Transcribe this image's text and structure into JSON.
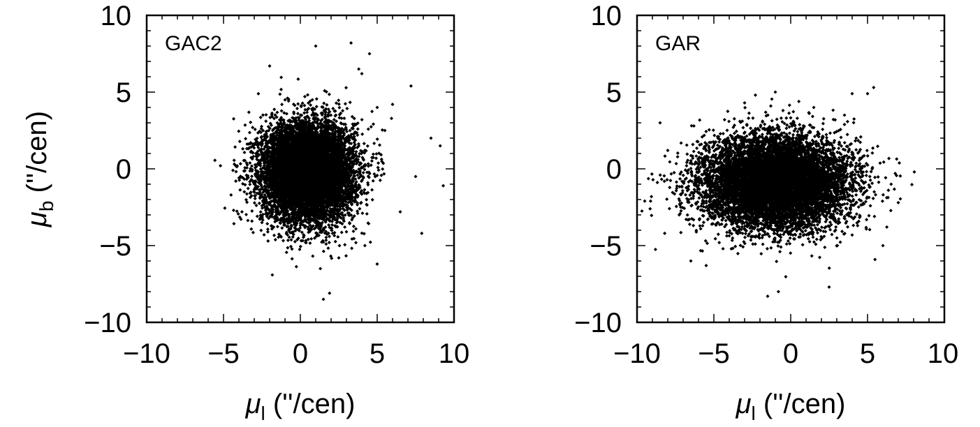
{
  "chart_data": [
    {
      "type": "scatter",
      "panel_label": "GAC2",
      "xlabel_symbol": "μ",
      "xlabel_sub": "l",
      "xlabel_unit": " (''/cen)",
      "ylabel_symbol": "μ",
      "ylabel_sub": "b",
      "ylabel_unit": " (''/cen)",
      "xlim": [
        -10,
        10
      ],
      "ylim": [
        -10,
        10
      ],
      "xticks": [
        "−10",
        "−5",
        "0",
        "5",
        "10"
      ],
      "yticks": [
        "10",
        "5",
        "0",
        "−5",
        "−10"
      ],
      "marker_color": "#000000",
      "cluster": {
        "center_x": 0.5,
        "center_y": -0.2,
        "sigma_x": 1.5,
        "sigma_y": 1.6,
        "points": 9000
      },
      "outliers": [
        [
          -5.2,
          0.2
        ],
        [
          -4.2,
          -0.8
        ],
        [
          -3.8,
          -2.8
        ],
        [
          -2.0,
          6.7
        ],
        [
          1.0,
          8.0
        ],
        [
          3.3,
          8.2
        ],
        [
          4.5,
          7.5
        ],
        [
          3.8,
          6.5
        ],
        [
          4.0,
          6.2
        ],
        [
          7.2,
          5.4
        ],
        [
          5.0,
          4.0
        ],
        [
          6.0,
          4.2
        ],
        [
          8.5,
          2.0
        ],
        [
          9.1,
          1.5
        ],
        [
          9.3,
          -1.1
        ],
        [
          7.9,
          -4.2
        ],
        [
          5.0,
          -6.2
        ],
        [
          1.3,
          -6.5
        ],
        [
          1.9,
          -8.1
        ],
        [
          1.5,
          -8.5
        ],
        [
          2.5,
          -5.8
        ],
        [
          -2.1,
          -4.7
        ],
        [
          -1.8,
          2.5
        ],
        [
          6.5,
          -2.8
        ],
        [
          7.5,
          -0.5
        ],
        [
          5.5,
          2.5
        ],
        [
          -2.5,
          -3.5
        ],
        [
          4.2,
          -5.0
        ]
      ]
    },
    {
      "type": "scatter",
      "panel_label": "GAR",
      "xlabel_symbol": "μ",
      "xlabel_sub": "l",
      "xlabel_unit": " (''/cen)",
      "xlim": [
        -10,
        10
      ],
      "ylim": [
        -10,
        10
      ],
      "xticks": [
        "−10",
        "−5",
        "0",
        "5",
        "10"
      ],
      "yticks": [
        "10",
        "5",
        "0",
        "−5",
        "−10"
      ],
      "marker_color": "#000000",
      "cluster": {
        "center_x": -1.0,
        "center_y": -0.9,
        "sigma_x": 2.4,
        "sigma_y": 1.5,
        "points": 9000
      },
      "outliers": [
        [
          -9.5,
          -2.1
        ],
        [
          -8.5,
          3.0
        ],
        [
          -8.0,
          1.2
        ],
        [
          -1.0,
          5.0
        ],
        [
          5.0,
          4.9
        ],
        [
          5.4,
          5.3
        ],
        [
          4.0,
          4.9
        ],
        [
          6.8,
          -0.3
        ],
        [
          7.0,
          -2.2
        ],
        [
          -1.5,
          -8.3
        ],
        [
          -0.8,
          -8.0
        ],
        [
          2.5,
          -7.7
        ],
        [
          -6.5,
          -6.0
        ],
        [
          -5.5,
          -6.3
        ],
        [
          6.0,
          -5.0
        ],
        [
          -8.2,
          -4.2
        ],
        [
          3.5,
          3.5
        ],
        [
          -3.0,
          4.3
        ],
        [
          -0.5,
          3.8
        ],
        [
          1.5,
          4.0
        ]
      ]
    }
  ]
}
